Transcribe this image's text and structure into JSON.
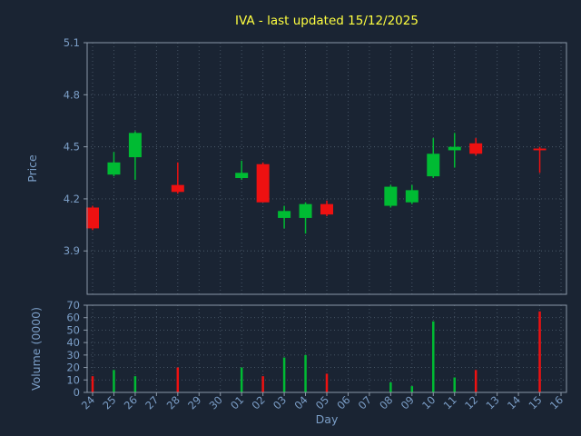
{
  "chart_data": {
    "type": "candlestick",
    "title": "IVA - last updated 15/12/2025",
    "xlabel": "Day",
    "price_ylabel": "Price",
    "volume_ylabel": "Volume (0000)",
    "price_ticks": [
      5.1,
      4.8,
      4.5,
      4.2,
      3.9
    ],
    "price_range": [
      3.65,
      5.1
    ],
    "volume_ticks": [
      70,
      60,
      50,
      40,
      30,
      20,
      10,
      0
    ],
    "volume_range": [
      0,
      70
    ],
    "grid": true,
    "x_categories": [
      "24",
      "25",
      "26",
      "27",
      "28",
      "29",
      "30",
      "01",
      "02",
      "03",
      "04",
      "05",
      "06",
      "07",
      "08",
      "09",
      "10",
      "11",
      "12",
      "13",
      "14",
      "15",
      "16"
    ],
    "colors": {
      "up": "#00bb33",
      "down": "#ee1111",
      "background": "#1a2433",
      "text": "#7b9ec7",
      "title": "#ffff40",
      "grid": "#4b5a6a",
      "spine": "#8b98a8"
    },
    "candles": [
      {
        "day": "24",
        "open": 4.15,
        "high": 4.16,
        "low": 4.02,
        "close": 4.03,
        "volume": 13
      },
      {
        "day": "25",
        "open": 4.34,
        "high": 4.47,
        "low": 4.33,
        "close": 4.41,
        "volume": 18
      },
      {
        "day": "26",
        "open": 4.44,
        "high": 4.59,
        "low": 4.31,
        "close": 4.58,
        "volume": 13
      },
      {
        "day": "28",
        "open": 4.28,
        "high": 4.41,
        "low": 4.23,
        "close": 4.24,
        "volume": 20
      },
      {
        "day": "01",
        "open": 4.32,
        "high": 4.42,
        "low": 4.31,
        "close": 4.35,
        "volume": 20
      },
      {
        "day": "02",
        "open": 4.4,
        "high": 4.41,
        "low": 4.18,
        "close": 4.18,
        "volume": 13
      },
      {
        "day": "03",
        "open": 4.09,
        "high": 4.16,
        "low": 4.03,
        "close": 4.13,
        "volume": 28
      },
      {
        "day": "04",
        "open": 4.09,
        "high": 4.18,
        "low": 4.0,
        "close": 4.17,
        "volume": 30
      },
      {
        "day": "05",
        "open": 4.17,
        "high": 4.19,
        "low": 4.1,
        "close": 4.11,
        "volume": 15
      },
      {
        "day": "08",
        "open": 4.16,
        "high": 4.28,
        "low": 4.15,
        "close": 4.27,
        "volume": 8
      },
      {
        "day": "09",
        "open": 4.18,
        "high": 4.28,
        "low": 4.17,
        "close": 4.25,
        "volume": 5
      },
      {
        "day": "10",
        "open": 4.33,
        "high": 4.55,
        "low": 4.32,
        "close": 4.46,
        "volume": 57
      },
      {
        "day": "11",
        "open": 4.48,
        "high": 4.58,
        "low": 4.38,
        "close": 4.5,
        "volume": 12
      },
      {
        "day": "12",
        "open": 4.52,
        "high": 4.55,
        "low": 4.45,
        "close": 4.46,
        "volume": 18
      },
      {
        "day": "15",
        "open": 4.49,
        "high": 4.5,
        "low": 4.35,
        "close": 4.48,
        "volume": 65
      }
    ]
  }
}
